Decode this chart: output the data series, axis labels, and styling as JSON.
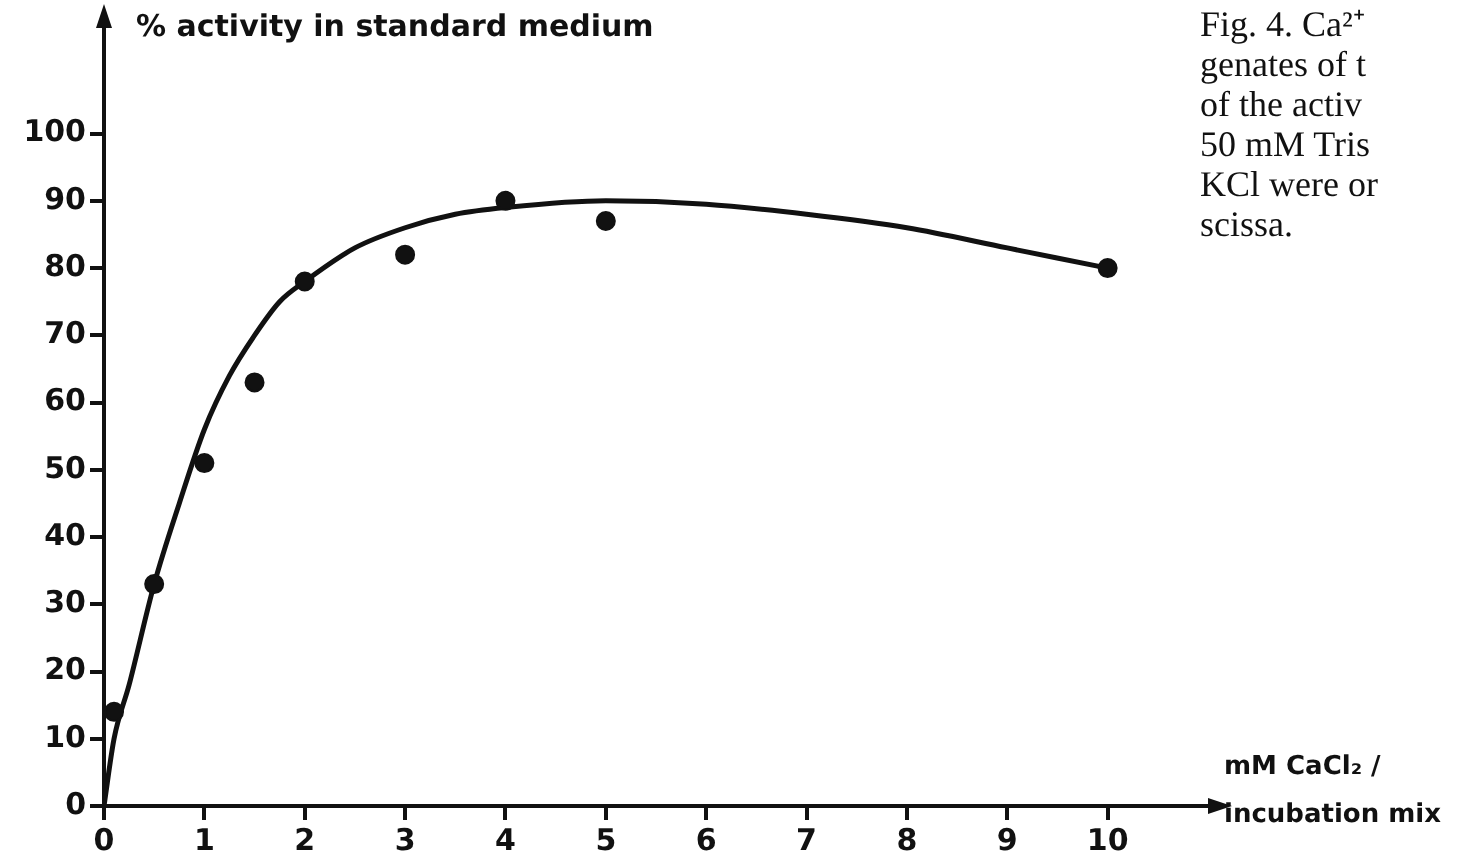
{
  "chart_data": {
    "type": "scatter",
    "ylabel": "% activity in standard medium",
    "xlabel": "mM CaCl₂ / incubation mix",
    "xlim": [
      0,
      11
    ],
    "xticks": [
      0,
      1,
      2,
      3,
      4,
      5,
      6,
      7,
      8,
      9,
      10
    ],
    "ylim": [
      0,
      116.6
    ],
    "yticks": [
      0,
      10,
      20,
      30,
      40,
      50,
      60,
      70,
      80,
      90,
      100
    ],
    "grid": false,
    "legend": false,
    "marker": "circle",
    "annotations": [
      "Fig. 4. Ca²⁺",
      "genates of t",
      "of the activ",
      "50 mM Tris",
      "KCl were or",
      "scissa."
    ],
    "series": [
      {
        "type": "scatter",
        "color": "#111111",
        "x": [
          0.1,
          0.5,
          1,
          1.5,
          2,
          3,
          4,
          5,
          10
        ],
        "values": [
          14,
          33,
          51,
          63,
          78,
          82,
          90,
          87,
          80
        ]
      },
      {
        "type": "line",
        "color": "#111111",
        "marker": "none",
        "line_style": "solid",
        "x": [
          0,
          0.1,
          0.25,
          0.5,
          0.75,
          1,
          1.25,
          1.5,
          1.75,
          2,
          2.5,
          3,
          3.5,
          4,
          5,
          6,
          7,
          8,
          9,
          10
        ],
        "values": [
          0,
          10,
          18,
          33,
          45,
          56,
          64,
          70,
          75,
          78,
          83,
          86,
          88,
          89,
          90,
          89.5,
          88,
          86,
          83,
          80
        ]
      }
    ]
  }
}
